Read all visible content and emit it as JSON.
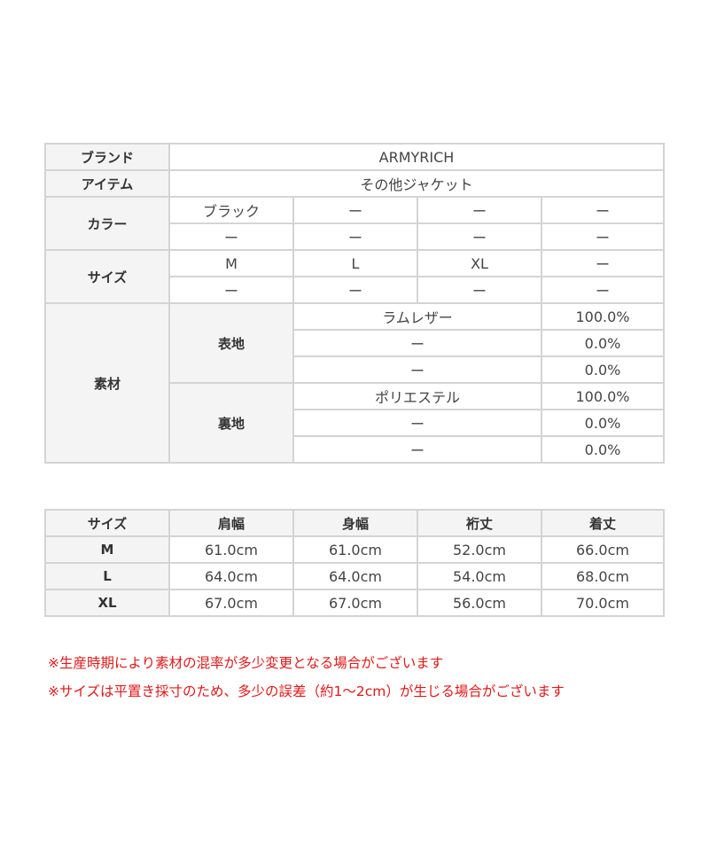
{
  "spec": {
    "brand_label": "ブランド",
    "brand_value": "ARMYRICH",
    "item_label": "アイテム",
    "item_value": "その他ジャケット",
    "color_label": "カラー",
    "colors": [
      [
        "ブラック",
        "ー",
        "ー",
        "ー"
      ],
      [
        "ー",
        "ー",
        "ー",
        "ー"
      ]
    ],
    "size_label": "サイズ",
    "sizes": [
      [
        "M",
        "L",
        "XL",
        "ー"
      ],
      [
        "ー",
        "ー",
        "ー",
        "ー"
      ]
    ],
    "material_label": "素材",
    "outer_label": "表地",
    "outer": [
      {
        "name": "ラムレザー",
        "pct": "100.0%"
      },
      {
        "name": "ー",
        "pct": "0.0%"
      },
      {
        "name": "ー",
        "pct": "0.0%"
      }
    ],
    "lining_label": "裏地",
    "lining": [
      {
        "name": "ポリエステル",
        "pct": "100.0%"
      },
      {
        "name": "ー",
        "pct": "0.0%"
      },
      {
        "name": "ー",
        "pct": "0.0%"
      }
    ]
  },
  "size_table": {
    "headers": [
      "サイズ",
      "肩幅",
      "身幅",
      "裄丈",
      "着丈"
    ],
    "rows": [
      [
        "M",
        "61.0cm",
        "61.0cm",
        "52.0cm",
        "66.0cm"
      ],
      [
        "L",
        "64.0cm",
        "64.0cm",
        "54.0cm",
        "68.0cm"
      ],
      [
        "XL",
        "67.0cm",
        "67.0cm",
        "56.0cm",
        "70.0cm"
      ]
    ]
  },
  "notes": [
    "※生産時期により素材の混率が多少変更となる場合がございます",
    "※サイズは平置き採寸のため、多少の誤差（約1～2cm）が生じる場合がございます"
  ],
  "colors": {
    "header_bg": "#f4f4f4",
    "border": "#d4d4d4",
    "note_text": "#e01818"
  }
}
